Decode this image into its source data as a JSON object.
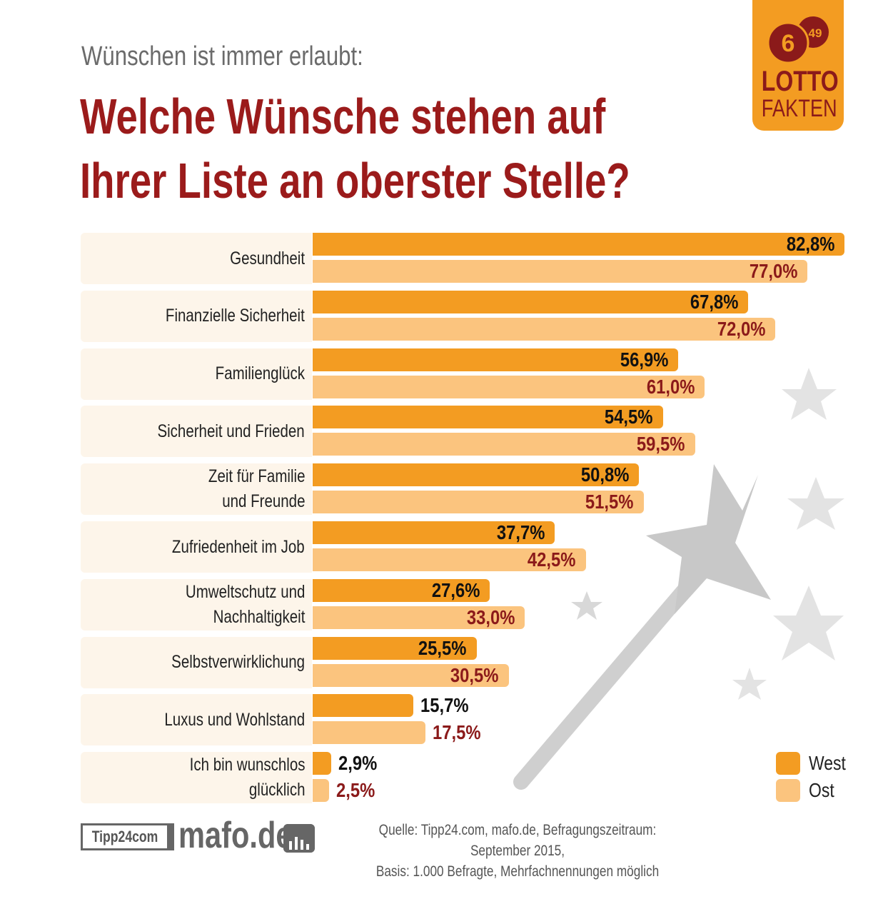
{
  "header": {
    "subtitle": "Wünschen ist immer erlaubt:",
    "title_line1": "Welche Wünsche stehen auf",
    "title_line2": "Ihrer Liste an oberster Stelle?"
  },
  "logo": {
    "ball1": "6",
    "ball2": "49",
    "line1": "LOTTO",
    "line2": "FAKTEN"
  },
  "colors": {
    "west": "#f39c22",
    "ost": "#fbc47e",
    "title": "#9b1b1b",
    "ost_text": "#8b1a1a"
  },
  "chart_data": {
    "type": "bar",
    "orientation": "horizontal",
    "categories": [
      "Gesundheit",
      "Finanzielle Sicherheit",
      "Familienglück",
      "Sicherheit und Frieden",
      "Zeit für Familie\nund Freunde",
      "Zufriedenheit im Job",
      "Umweltschutz und\nNachhaltigkeit",
      "Selbstverwirklichung",
      "Luxus und Wohlstand",
      "Ich bin wunschlos\nglücklich"
    ],
    "series": [
      {
        "name": "West",
        "values": [
          82.8,
          67.8,
          56.9,
          54.5,
          50.8,
          37.7,
          27.6,
          25.5,
          15.7,
          2.9
        ],
        "labels": [
          "82,8%",
          "67,8%",
          "56,9%",
          "54,5%",
          "50,8%",
          "37,7%",
          "27,6%",
          "25,5%",
          "15,7%",
          "2,9%"
        ]
      },
      {
        "name": "Ost",
        "values": [
          77.0,
          72.0,
          61.0,
          59.5,
          51.5,
          42.5,
          33.0,
          30.5,
          17.5,
          2.5
        ],
        "labels": [
          "77,0%",
          "72,0%",
          "61,0%",
          "59,5%",
          "51,5%",
          "42,5%",
          "33,0%",
          "30,5%",
          "17,5%",
          "2,5%"
        ]
      }
    ],
    "unit": "%",
    "legend": "bottom-right",
    "grid": false
  },
  "footer": {
    "logo1": "Tipp24com",
    "logo2": "mafo.de",
    "source_line1": "Quelle: Tipp24.com, mafo.de, Befragungszeitraum: September 2015,",
    "source_line2": "Basis: 1.000 Befragte, Mehrfachnennungen möglich"
  }
}
